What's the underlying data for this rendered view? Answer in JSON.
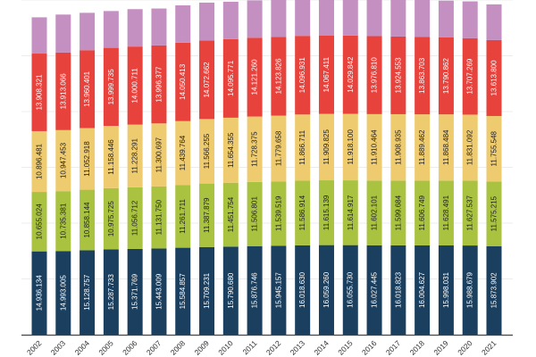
{
  "chart_data": {
    "type": "bar",
    "stacked": true,
    "categories": [
      "2002",
      "2003",
      "2004",
      "2005",
      "2006",
      "2007",
      "2008",
      "2009",
      "2010",
      "2011",
      "2012",
      "2013",
      "2014",
      "2015",
      "2016",
      "2017",
      "2018",
      "2019",
      "2020",
      "2021"
    ],
    "ylim": [
      0,
      60000000
    ],
    "grid": true,
    "series": [
      {
        "color": "#1b3f5e",
        "label_color": "#ffffff",
        "show_labels": true,
        "values": [
          14936134,
          14993005,
          15128757,
          15287733,
          15371769,
          15443009,
          15584857,
          15709231,
          15790680,
          15876746,
          15945157,
          16018630,
          16059260,
          16055730,
          16027445,
          16018823,
          16004627,
          15998031,
          15988679,
          15873902
        ]
      },
      {
        "color": "#a9c23f",
        "label_color": "#222222",
        "show_labels": true,
        "values": [
          10655024,
          10735381,
          10858144,
          10975725,
          11056712,
          11131750,
          11261711,
          11387879,
          11451754,
          11506801,
          11539519,
          11586914,
          11615139,
          11614917,
          11602101,
          11599684,
          11606749,
          11628491,
          11627537,
          11575215
        ]
      },
      {
        "color": "#efcb6f",
        "label_color": "#222222",
        "show_labels": true,
        "values": [
          10896481,
          10947453,
          11052918,
          11158446,
          11228291,
          11300697,
          11439764,
          11566255,
          11654355,
          11728375,
          11779658,
          11866711,
          11909825,
          11918100,
          11910464,
          11908935,
          11889462,
          11868484,
          11831092,
          11755548
        ]
      },
      {
        "color": "#e8423d",
        "label_color": "#ffffff",
        "show_labels": true,
        "values": [
          13908321,
          13913066,
          13960401,
          13999735,
          14000711,
          13996377,
          14050413,
          14072662,
          14095771,
          14121260,
          14123826,
          14096931,
          14067411,
          14029842,
          13976810,
          13924553,
          13863703,
          13790862,
          13707269,
          13613800
        ]
      },
      {
        "color": "#c48fc1",
        "label_color": "#ffffff",
        "show_labels": false,
        "values": [
          6500000,
          6800000,
          6700000,
          6600000,
          6700000,
          6600000,
          6700000,
          6800000,
          6700000,
          6700000,
          6700000,
          6700000,
          6700000,
          6700000,
          6700000,
          6700000,
          6700000,
          6600000,
          6600000,
          6400000
        ]
      }
    ]
  }
}
